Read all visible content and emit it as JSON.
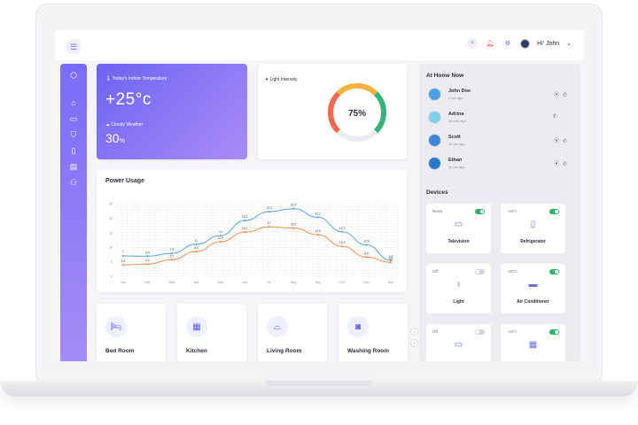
{
  "topbar": {
    "user_greeting": "Hi' John",
    "icons": [
      "menu-icon",
      "search-icon",
      "bell-icon",
      "gear-icon",
      "chevron-down-icon"
    ]
  },
  "sidebar": {
    "icons": [
      "cube-icon",
      "home-icon",
      "monitor-icon",
      "shield-icon",
      "book-icon",
      "id-card-icon",
      "users-icon"
    ]
  },
  "temperature_card": {
    "label": "Today's Indoor Temperature",
    "temperature": "+25°c",
    "weather": "Cloudy Weather",
    "humidity_value": "30",
    "humidity_unit": "%"
  },
  "light_card": {
    "label": "Light Intensity",
    "percent_label": "75%",
    "percent_value": 75,
    "gauge_colors": [
      "#f06a4f",
      "#f5b03d",
      "#3ab37a"
    ]
  },
  "power_usage": {
    "title": "Power Usage"
  },
  "chart_data": {
    "type": "line",
    "title": "Power Usage",
    "categories": [
      "Jan",
      "Feb",
      "Mar",
      "Apr",
      "May",
      "Jun",
      "Jul",
      "Aug",
      "Sep",
      "Oct",
      "Nov",
      "Dec"
    ],
    "series": [
      {
        "color": "#5ba5e3",
        "values": [
          7,
          6.9,
          7.9,
          11,
          14,
          19.2,
          22.2,
          23.3,
          20.3,
          15.3,
          10.8,
          5.5
        ]
      },
      {
        "color": "#f29052",
        "values": [
          3.9,
          4.2,
          5.7,
          8.5,
          11.9,
          15.2,
          17,
          16.6,
          14.3,
          10.3,
          6.6,
          4.8
        ]
      }
    ],
    "ylim": [
      0,
      25
    ],
    "yticks": [
      0,
      5,
      10,
      15,
      20,
      25
    ],
    "grid": true,
    "legend": "none"
  },
  "rooms": [
    {
      "label": "Bed Room",
      "icon": "bed-icon"
    },
    {
      "label": "Kitchen",
      "icon": "kitchen-icon"
    },
    {
      "label": "Living Room",
      "icon": "sofa-icon"
    },
    {
      "label": "Washing Room",
      "icon": "washing-machine-icon"
    }
  ],
  "at_home": {
    "title": "At Home Now",
    "people": [
      {
        "name": "John Doe",
        "time": "2 hrs ago",
        "avatar_color": "#4aa3df"
      },
      {
        "name": "Adrina",
        "time": "58 min ago",
        "avatar_color": "#7fd0e6"
      },
      {
        "name": "Scott",
        "time": "11 hrs ago",
        "avatar_color": "#3f87d6"
      },
      {
        "name": "Ethan",
        "time": "11 hrs ago",
        "avatar_color": "#2b78c9"
      }
    ]
  },
  "devices": {
    "title": "Devices",
    "items": [
      {
        "status": "News",
        "name": "Television",
        "on": true,
        "icon": "tv-icon"
      },
      {
        "status": "~15°c",
        "name": "Refrigerator",
        "on": true,
        "icon": "fridge-icon"
      },
      {
        "status": "Off",
        "name": "Light",
        "on": false,
        "icon": "bulb-icon"
      },
      {
        "status": "~20°c",
        "name": "Air Conditioner",
        "on": true,
        "icon": "ac-icon"
      },
      {
        "status": "Off",
        "name": "",
        "on": false,
        "icon": "laptop-icon"
      },
      {
        "status": "~15°c",
        "name": "",
        "on": true,
        "icon": "fridge-icon"
      }
    ]
  }
}
